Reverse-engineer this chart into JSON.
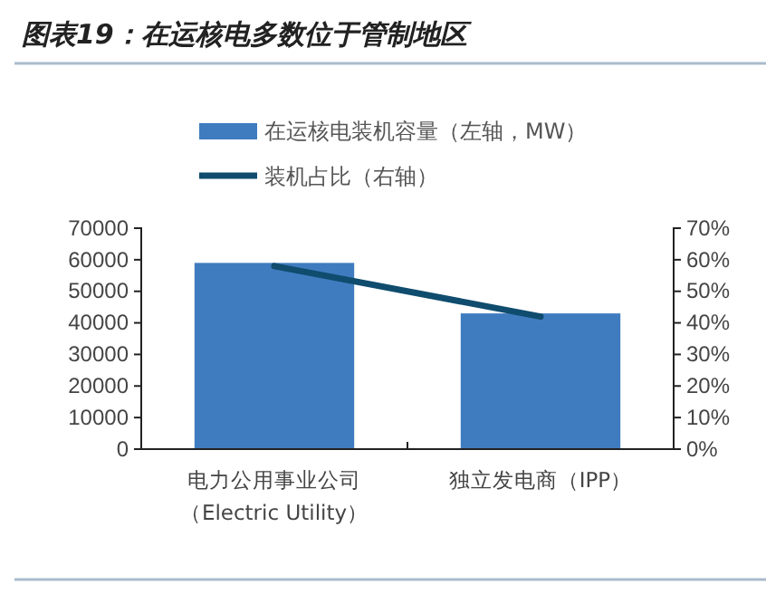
{
  "chart_data": {
    "type": "bar",
    "title": "图表19：在运核电多数位于管制地区",
    "categories": [
      "电力公用事业公司（Electric Utility）",
      "独立发电商（IPP）"
    ],
    "series": [
      {
        "name": "在运核电装机容量（左轴，MW）",
        "color": "#3f7cbf",
        "values": [
          59000,
          43000
        ]
      },
      {
        "name": "装机占比（右轴）",
        "type": "line",
        "axis": "y2",
        "color": "#0f4c6e",
        "values": [
          58,
          42
        ]
      }
    ],
    "ylim": [
      0,
      70000
    ],
    "yticks": [
      0,
      10000,
      20000,
      30000,
      40000,
      50000,
      60000,
      70000
    ],
    "y2lim": [
      0,
      70
    ],
    "y2ticks": [
      {
        "value": 0,
        "label": "0%"
      },
      {
        "value": 10,
        "label": "10%"
      },
      {
        "value": 20,
        "label": "20%"
      },
      {
        "value": 30,
        "label": "30%"
      },
      {
        "value": 40,
        "label": "40%"
      },
      {
        "value": 50,
        "label": "50%"
      },
      {
        "value": 60,
        "label": "60%"
      },
      {
        "value": 70,
        "label": "70%"
      }
    ],
    "legend": "top",
    "grid": false
  }
}
